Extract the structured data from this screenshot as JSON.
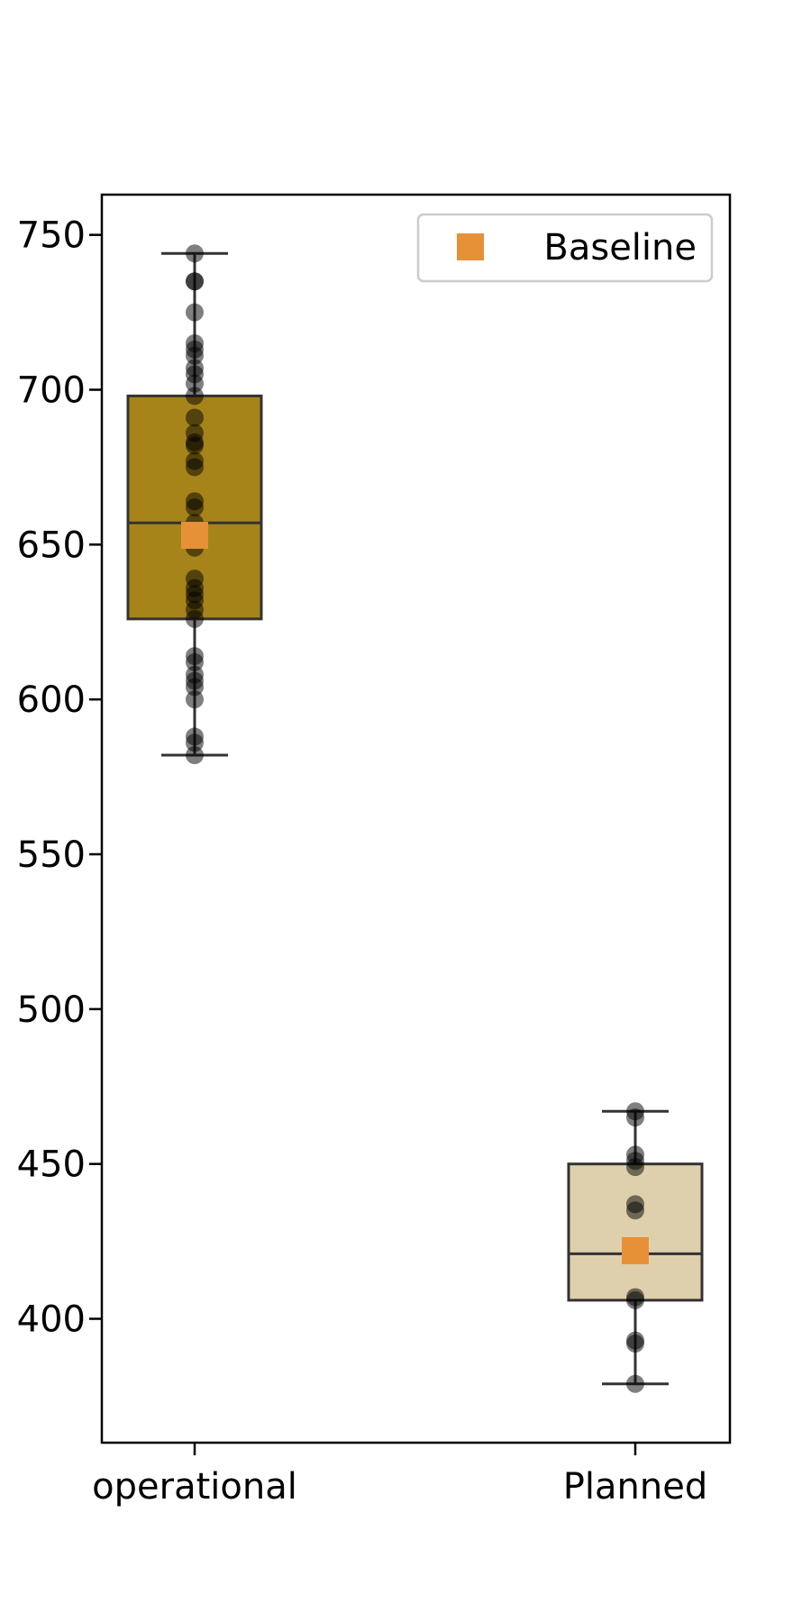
{
  "chart_data": {
    "type": "box",
    "title": "",
    "xlabel": "",
    "ylabel": "",
    "categories": [
      "operational",
      "Planned"
    ],
    "ylim": [
      360,
      763
    ],
    "yticks": [
      400,
      450,
      500,
      550,
      600,
      650,
      700,
      750
    ],
    "legend": {
      "label": "Baseline",
      "placement": "top-right",
      "marker": "square",
      "color": "#E69138"
    },
    "boxes": [
      {
        "category": "operational",
        "color": "#A6841A",
        "whisker_low": 582,
        "q1": 626,
        "median": 657,
        "q3": 698,
        "whisker_high": 744,
        "mean": 653,
        "points": [
          744,
          735,
          735,
          725,
          715,
          713,
          711,
          707,
          705,
          702,
          698,
          691,
          686,
          683,
          682,
          677,
          675,
          664,
          662,
          657,
          649,
          639,
          636,
          634,
          632,
          629,
          626,
          614,
          612,
          608,
          606,
          604,
          600,
          588,
          586,
          582
        ]
      },
      {
        "category": "Planned",
        "color": "#DFD0AD",
        "whisker_low": 379,
        "q1": 406,
        "median": 421,
        "q3": 450,
        "whisker_high": 467,
        "mean": 422,
        "points": [
          467,
          465,
          453,
          451,
          449,
          437,
          435,
          421,
          407,
          406,
          393,
          392,
          379
        ]
      }
    ],
    "point_color": "#000000",
    "box_edge_color": "#333333"
  }
}
